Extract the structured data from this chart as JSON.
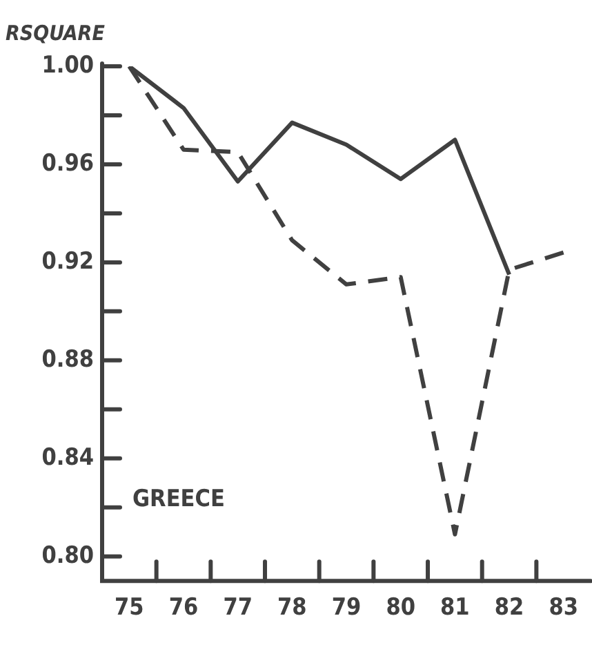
{
  "chart_data": {
    "type": "line",
    "title": "RSQUARE",
    "categories": [
      "75",
      "76",
      "77",
      "78",
      "79",
      "80",
      "81",
      "82",
      "83"
    ],
    "series": [
      {
        "color": "#404040",
        "line_style": "solid",
        "values": [
          1.0,
          0.983,
          0.953,
          0.977,
          0.968,
          0.954,
          0.97,
          0.915,
          null
        ]
      },
      {
        "color": "#404040",
        "line_style": "dashed",
        "values": [
          1.0,
          0.966,
          0.965,
          0.929,
          0.911,
          0.914,
          0.809,
          0.917,
          0.924
        ]
      }
    ],
    "ylim": [
      0.79,
      1.0
    ],
    "yticks": [
      {
        "value": 0.8,
        "label": "0.80"
      },
      {
        "value": 0.82,
        "label": null
      },
      {
        "value": 0.84,
        "label": "0.84"
      },
      {
        "value": 0.86,
        "label": null
      },
      {
        "value": 0.88,
        "label": "0.88"
      },
      {
        "value": 0.9,
        "label": null
      },
      {
        "value": 0.92,
        "label": "0.92"
      },
      {
        "value": 0.94,
        "label": null
      },
      {
        "value": 0.96,
        "label": "0.96"
      },
      {
        "value": 0.98,
        "label": null
      },
      {
        "value": 1.0,
        "label": "1.00"
      }
    ],
    "annotations": [
      "GREECE"
    ],
    "grid": false,
    "legend": false,
    "marker": "none"
  }
}
